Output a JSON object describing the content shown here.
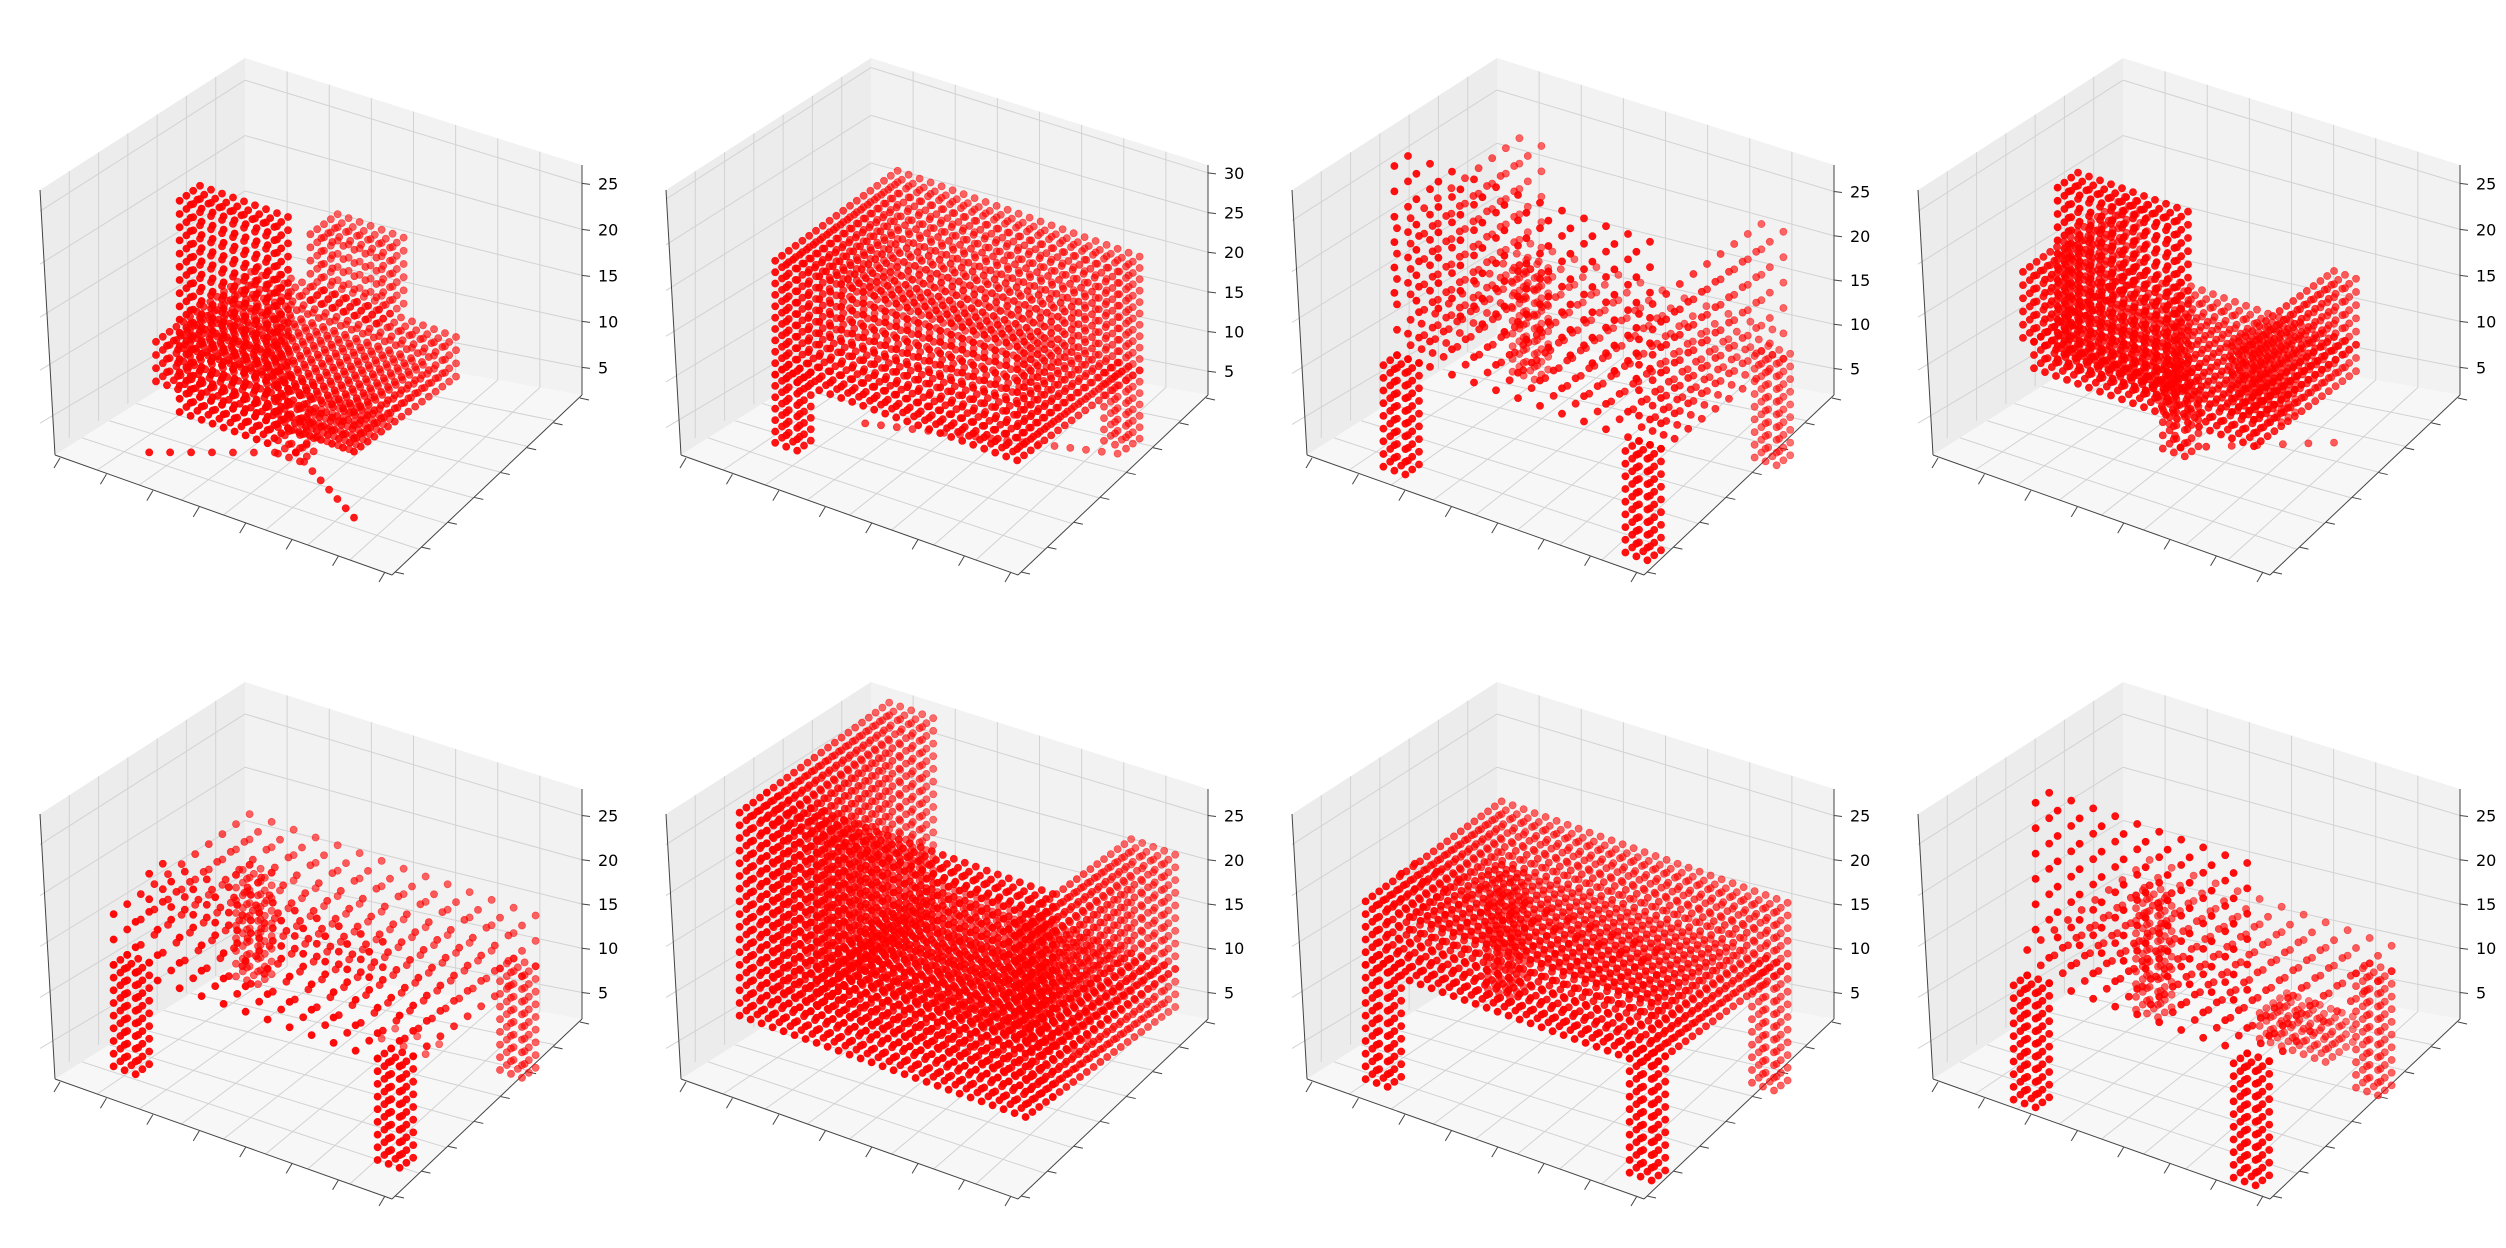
{
  "figure": {
    "background": "#ffffff",
    "marker_color": "#ff0000",
    "pane_colors": {
      "left": "#ececec",
      "back": "#f2f2f2",
      "floor": "#f7f7f7"
    },
    "grid": true,
    "axis_tick_labels_xy": false
  },
  "chart_data": [
    {
      "type": "scatter3d",
      "subject": "voxel point cloud",
      "zlim": [
        2,
        27
      ],
      "z_ticks": [
        5,
        10,
        15,
        20,
        25
      ],
      "points": [
        {
          "x": [
            0,
            1,
            2,
            3,
            4,
            5,
            6,
            7,
            8,
            9,
            10,
            11,
            12,
            13,
            14,
            15,
            16,
            17,
            18,
            19,
            20,
            21,
            22,
            23,
            24,
            25,
            26,
            27,
            28,
            29
          ],
          "y": [
            0,
            1,
            2,
            3,
            4,
            5,
            6,
            7,
            8,
            9,
            10,
            11,
            12,
            13,
            14,
            15,
            16,
            17,
            18,
            19,
            20,
            21,
            22,
            23,
            24,
            25,
            26,
            27,
            28,
            29
          ],
          "z": [
            4,
            5,
            6,
            7,
            8,
            9,
            10,
            11,
            12,
            13,
            14,
            15,
            16,
            17,
            18,
            19,
            20,
            21,
            22,
            23,
            24,
            25
          ]
        }
      ]
    },
    {
      "type": "scatter3d",
      "subject": "voxel point cloud",
      "zlim": [
        2,
        31
      ],
      "z_ticks": [
        5,
        10,
        15,
        20,
        25,
        30
      ]
    },
    {
      "type": "scatter3d",
      "subject": "voxel point cloud",
      "zlim": [
        2,
        28
      ],
      "z_ticks": [
        5,
        10,
        15,
        20,
        25
      ]
    },
    {
      "type": "scatter3d",
      "subject": "voxel point cloud",
      "zlim": [
        2,
        27
      ],
      "z_ticks": [
        5,
        10,
        15,
        20,
        25
      ]
    },
    {
      "type": "scatter3d",
      "subject": "voxel point cloud",
      "zlim": [
        2,
        28
      ],
      "z_ticks": [
        5,
        10,
        15,
        20,
        25
      ]
    },
    {
      "type": "scatter3d",
      "subject": "voxel point cloud",
      "zlim": [
        2,
        28
      ],
      "z_ticks": [
        5,
        10,
        15,
        20,
        25
      ]
    },
    {
      "type": "scatter3d",
      "subject": "voxel point cloud",
      "zlim": [
        2,
        28
      ],
      "z_ticks": [
        5,
        10,
        15,
        20,
        25
      ]
    },
    {
      "type": "scatter3d",
      "subject": "voxel point cloud",
      "zlim": [
        2,
        28
      ],
      "z_ticks": [
        5,
        10,
        15,
        20,
        25
      ]
    }
  ],
  "voxel_shapes": [
    {
      "shape": "chair-high-back-swivel",
      "parts": [
        {
          "kind": "box",
          "x": [
            8,
            16
          ],
          "y": [
            2,
            5
          ],
          "z": [
            8,
            24
          ],
          "step": 1
        },
        {
          "kind": "box",
          "x": [
            4,
            22
          ],
          "y": [
            5,
            20
          ],
          "z": [
            8,
            11
          ],
          "step": 1
        },
        {
          "kind": "box",
          "x": [
            10,
            16
          ],
          "y": [
            18,
            22
          ],
          "z": [
            11,
            16
          ],
          "step": 1
        },
        {
          "kind": "box",
          "x": [
            12,
            14
          ],
          "y": [
            10,
            12
          ],
          "z": [
            3,
            8
          ],
          "step": 1
        },
        {
          "kind": "line",
          "from": [
            13,
            11,
            3
          ],
          "to": [
            4,
            4,
            3
          ],
          "n": 7
        },
        {
          "kind": "line",
          "from": [
            13,
            11,
            3
          ],
          "to": [
            22,
            5,
            3
          ],
          "n": 7
        },
        {
          "kind": "line",
          "from": [
            13,
            11,
            3
          ],
          "to": [
            13,
            22,
            3
          ],
          "n": 7
        },
        {
          "kind": "box",
          "x": [
            11,
            16
          ],
          "y": [
            14,
            20
          ],
          "z": [
            3,
            3
          ],
          "step": 1
        }
      ]
    },
    {
      "shape": "bench-box",
      "parts": [
        {
          "kind": "box",
          "x": [
            4,
            26
          ],
          "y": [
            4,
            22
          ],
          "z": [
            10,
            20
          ],
          "step": 1
        },
        {
          "kind": "box",
          "x": [
            4,
            6
          ],
          "y": [
            4,
            6
          ],
          "z": [
            4,
            10
          ],
          "step": 1
        },
        {
          "kind": "box",
          "x": [
            24,
            26
          ],
          "y": [
            20,
            22
          ],
          "z": [
            4,
            10
          ],
          "step": 1
        },
        {
          "kind": "line",
          "from": [
            6,
            14,
            2
          ],
          "to": [
            24,
            22,
            2
          ],
          "n": 16
        }
      ]
    },
    {
      "shape": "armchair-open-frame",
      "parts": [
        {
          "kind": "box",
          "x": [
            4,
            26
          ],
          "y": [
            3,
            5
          ],
          "z": [
            16,
            27
          ],
          "step": 2
        },
        {
          "kind": "box",
          "x": [
            4,
            26
          ],
          "y": [
            5,
            24
          ],
          "z": [
            10,
            12
          ],
          "step": 2
        },
        {
          "kind": "box",
          "x": [
            3,
            5
          ],
          "y": [
            5,
            24
          ],
          "z": [
            10,
            20
          ],
          "step": 2
        },
        {
          "kind": "box",
          "x": [
            25,
            27
          ],
          "y": [
            5,
            24
          ],
          "z": [
            10,
            20
          ],
          "step": 2
        },
        {
          "kind": "box",
          "x": [
            3,
            5
          ],
          "y": [
            3,
            5
          ],
          "z": [
            2,
            10
          ],
          "step": 1
        },
        {
          "kind": "box",
          "x": [
            25,
            27
          ],
          "y": [
            3,
            5
          ],
          "z": [
            2,
            10
          ],
          "step": 1
        },
        {
          "kind": "box",
          "x": [
            3,
            5
          ],
          "y": [
            22,
            24
          ],
          "z": [
            2,
            10
          ],
          "step": 1
        },
        {
          "kind": "box",
          "x": [
            25,
            27
          ],
          "y": [
            22,
            24
          ],
          "z": [
            2,
            10
          ],
          "step": 1
        }
      ]
    },
    {
      "shape": "armchair-swivel",
      "parts": [
        {
          "kind": "box",
          "x": [
            8,
            18
          ],
          "y": [
            2,
            5
          ],
          "z": [
            12,
            25
          ],
          "step": 1
        },
        {
          "kind": "box",
          "x": [
            4,
            24
          ],
          "y": [
            5,
            20
          ],
          "z": [
            9,
            11
          ],
          "step": 1
        },
        {
          "kind": "box",
          "x": [
            3,
            5
          ],
          "y": [
            5,
            20
          ],
          "z": [
            11,
            16
          ],
          "step": 1
        },
        {
          "kind": "box",
          "x": [
            22,
            24
          ],
          "y": [
            5,
            20
          ],
          "z": [
            11,
            16
          ],
          "step": 1
        },
        {
          "kind": "box",
          "x": [
            12,
            14
          ],
          "y": [
            11,
            13
          ],
          "z": [
            3,
            9
          ],
          "step": 1
        },
        {
          "kind": "line",
          "from": [
            13,
            12,
            3
          ],
          "to": [
            5,
            20,
            3
          ],
          "n": 6
        },
        {
          "kind": "line",
          "from": [
            13,
            12,
            3
          ],
          "to": [
            22,
            20,
            3
          ],
          "n": 6
        },
        {
          "kind": "box",
          "x": [
            13,
            16
          ],
          "y": [
            22,
            24
          ],
          "z": [
            2,
            4
          ],
          "step": 1
        }
      ]
    },
    {
      "shape": "table-rect",
      "parts": [
        {
          "kind": "box",
          "x": [
            2,
            28
          ],
          "y": [
            2,
            22
          ],
          "z": [
            12,
            17
          ],
          "step": 2
        },
        {
          "kind": "box",
          "x": [
            4,
            24
          ],
          "y": [
            4,
            6
          ],
          "z": [
            17,
            20
          ],
          "step": 2
        },
        {
          "kind": "box",
          "x": [
            2,
            4
          ],
          "y": [
            2,
            4
          ],
          "z": [
            4,
            12
          ],
          "step": 1
        },
        {
          "kind": "box",
          "x": [
            26,
            28
          ],
          "y": [
            2,
            4
          ],
          "z": [
            4,
            12
          ],
          "step": 1
        },
        {
          "kind": "box",
          "x": [
            2,
            4
          ],
          "y": [
            20,
            22
          ],
          "z": [
            4,
            12
          ],
          "step": 1
        },
        {
          "kind": "box",
          "x": [
            26,
            28
          ],
          "y": [
            20,
            22
          ],
          "z": [
            4,
            12
          ],
          "step": 1
        },
        {
          "kind": "box",
          "x": [
            14,
            18
          ],
          "y": [
            22,
            24
          ],
          "z": [
            2,
            2
          ],
          "step": 2
        }
      ]
    },
    {
      "shape": "sofa-l",
      "parts": [
        {
          "kind": "box",
          "x": [
            2,
            28
          ],
          "y": [
            2,
            6
          ],
          "z": [
            8,
            24
          ],
          "step": 1
        },
        {
          "kind": "box",
          "x": [
            2,
            6
          ],
          "y": [
            6,
            24
          ],
          "z": [
            8,
            24
          ],
          "step": 1
        },
        {
          "kind": "box",
          "x": [
            6,
            28
          ],
          "y": [
            6,
            24
          ],
          "z": [
            8,
            11
          ],
          "step": 1
        },
        {
          "kind": "box",
          "x": [
            24,
            28
          ],
          "y": [
            6,
            24
          ],
          "z": [
            11,
            20
          ],
          "step": 1
        },
        {
          "kind": "box",
          "x": [
            8,
            20
          ],
          "y": [
            22,
            24
          ],
          "z": [
            3,
            8
          ],
          "step": 2
        }
      ]
    },
    {
      "shape": "table-rect-2",
      "parts": [
        {
          "kind": "box",
          "x": [
            2,
            28
          ],
          "y": [
            2,
            22
          ],
          "z": [
            12,
            17
          ],
          "step": 1
        },
        {
          "kind": "box",
          "x": [
            4,
            26
          ],
          "y": [
            4,
            7
          ],
          "z": [
            17,
            20
          ],
          "step": 2
        },
        {
          "kind": "box",
          "x": [
            2,
            4
          ],
          "y": [
            2,
            4
          ],
          "z": [
            3,
            12
          ],
          "step": 1
        },
        {
          "kind": "box",
          "x": [
            26,
            28
          ],
          "y": [
            2,
            4
          ],
          "z": [
            3,
            12
          ],
          "step": 1
        },
        {
          "kind": "box",
          "x": [
            2,
            4
          ],
          "y": [
            20,
            22
          ],
          "z": [
            3,
            12
          ],
          "step": 1
        },
        {
          "kind": "box",
          "x": [
            26,
            28
          ],
          "y": [
            20,
            22
          ],
          "z": [
            3,
            12
          ],
          "step": 1
        }
      ]
    },
    {
      "shape": "chair-open-frame",
      "parts": [
        {
          "kind": "box",
          "x": [
            6,
            24
          ],
          "y": [
            2,
            4
          ],
          "z": [
            16,
            27
          ],
          "step": 2
        },
        {
          "kind": "box",
          "x": [
            4,
            26
          ],
          "y": [
            4,
            22
          ],
          "z": [
            11,
            14
          ],
          "step": 2
        },
        {
          "kind": "box",
          "x": [
            4,
            6
          ],
          "y": [
            2,
            4
          ],
          "z": [
            2,
            11
          ],
          "step": 1
        },
        {
          "kind": "box",
          "x": [
            24,
            26
          ],
          "y": [
            2,
            4
          ],
          "z": [
            2,
            11
          ],
          "step": 1
        },
        {
          "kind": "box",
          "x": [
            4,
            6
          ],
          "y": [
            20,
            22
          ],
          "z": [
            2,
            11
          ],
          "step": 1
        },
        {
          "kind": "box",
          "x": [
            24,
            26
          ],
          "y": [
            20,
            22
          ],
          "z": [
            2,
            11
          ],
          "step": 1
        },
        {
          "kind": "box",
          "x": [
            14,
            20
          ],
          "y": [
            22,
            26
          ],
          "z": [
            2,
            4
          ],
          "step": 1
        }
      ]
    }
  ]
}
